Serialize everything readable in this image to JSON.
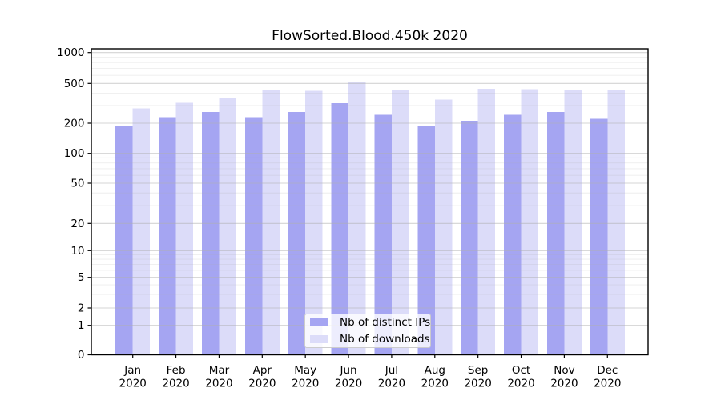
{
  "chart_data": {
    "type": "bar",
    "title": "FlowSorted.Blood.450k 2020",
    "categories": [
      "Jan 2020",
      "Feb 2020",
      "Mar 2020",
      "Apr 2020",
      "May 2020",
      "Jun 2020",
      "Jul 2020",
      "Aug 2020",
      "Sep 2020",
      "Oct 2020",
      "Nov 2020",
      "Dec 2020"
    ],
    "series": [
      {
        "name": "Nb of distinct IPs",
        "color": "#a5a5f2",
        "values": [
          186,
          230,
          260,
          229,
          258,
          318,
          243,
          188,
          212,
          243,
          259,
          222
        ]
      },
      {
        "name": "Nb of downloads",
        "color": "#dcdcf9",
        "values": [
          282,
          320,
          354,
          431,
          422,
          518,
          431,
          345,
          440,
          436,
          430,
          430
        ]
      }
    ],
    "yscale": "symlog",
    "yticks": [
      1000,
      500,
      200,
      100,
      50,
      20,
      10,
      5,
      2,
      1,
      0
    ],
    "ylim": [
      0,
      1090
    ],
    "grid": {
      "horizontal": true,
      "minor": true,
      "vertical": false
    },
    "legend_position": "lower-center",
    "xlabel": "",
    "ylabel": ""
  },
  "colors": {
    "spine": "#000000",
    "grid": "#b0b0b0",
    "text": "#000000",
    "background": "#ffffff"
  }
}
